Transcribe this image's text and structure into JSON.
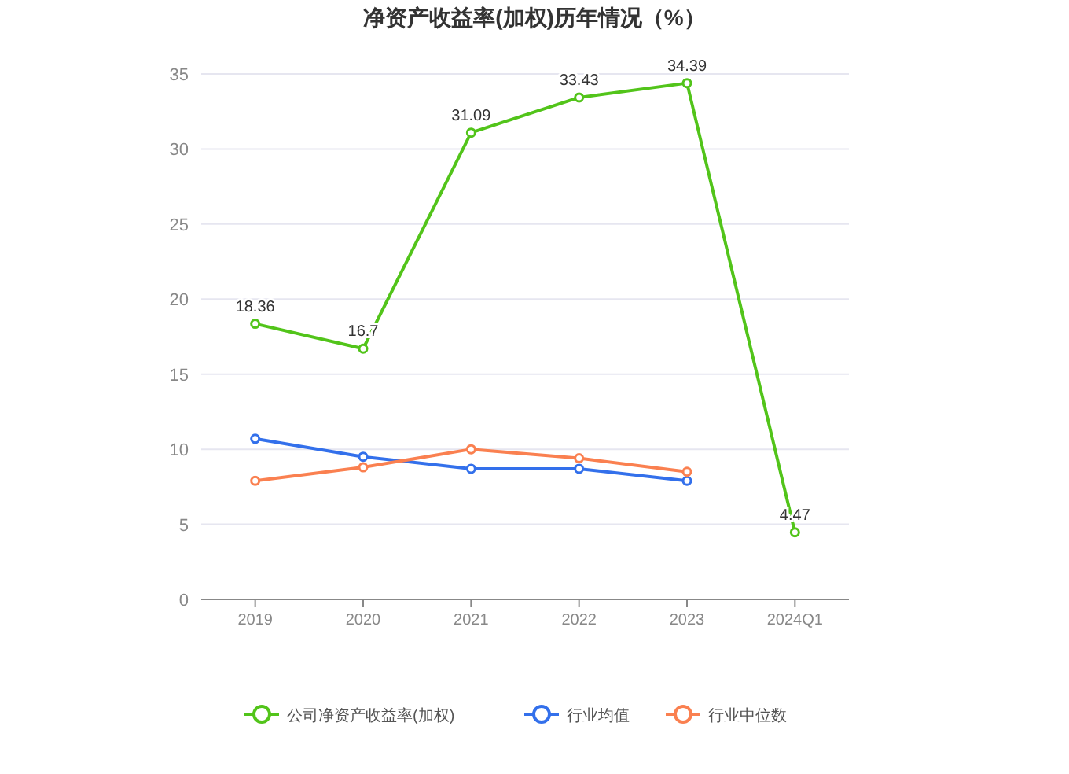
{
  "chart_data": {
    "type": "line",
    "title": "净资产收益率(加权)历年情况（%）",
    "categories": [
      "2019",
      "2020",
      "2021",
      "2022",
      "2023",
      "2024Q1"
    ],
    "series": [
      {
        "name": "公司净资产收益率(加权)",
        "color": "#52c41a",
        "values": [
          18.36,
          16.7,
          31.09,
          33.43,
          34.39,
          4.47
        ],
        "value_labels": [
          "18.36",
          "16.7",
          "31.09",
          "33.43",
          "34.39",
          "4.47"
        ]
      },
      {
        "name": "行业均值",
        "color": "#3370eb",
        "values": [
          10.7,
          9.5,
          8.7,
          8.7,
          7.9,
          null
        ]
      },
      {
        "name": "行业中位数",
        "color": "#fa8050",
        "values": [
          7.9,
          8.8,
          10.0,
          9.4,
          8.5,
          null
        ]
      }
    ],
    "ylim": [
      0,
      35
    ],
    "yticks": [
      0,
      5,
      10,
      15,
      20,
      25,
      30,
      35
    ],
    "grid": "y",
    "legend": "bottom",
    "marker": "circle",
    "line_style": "solid"
  }
}
